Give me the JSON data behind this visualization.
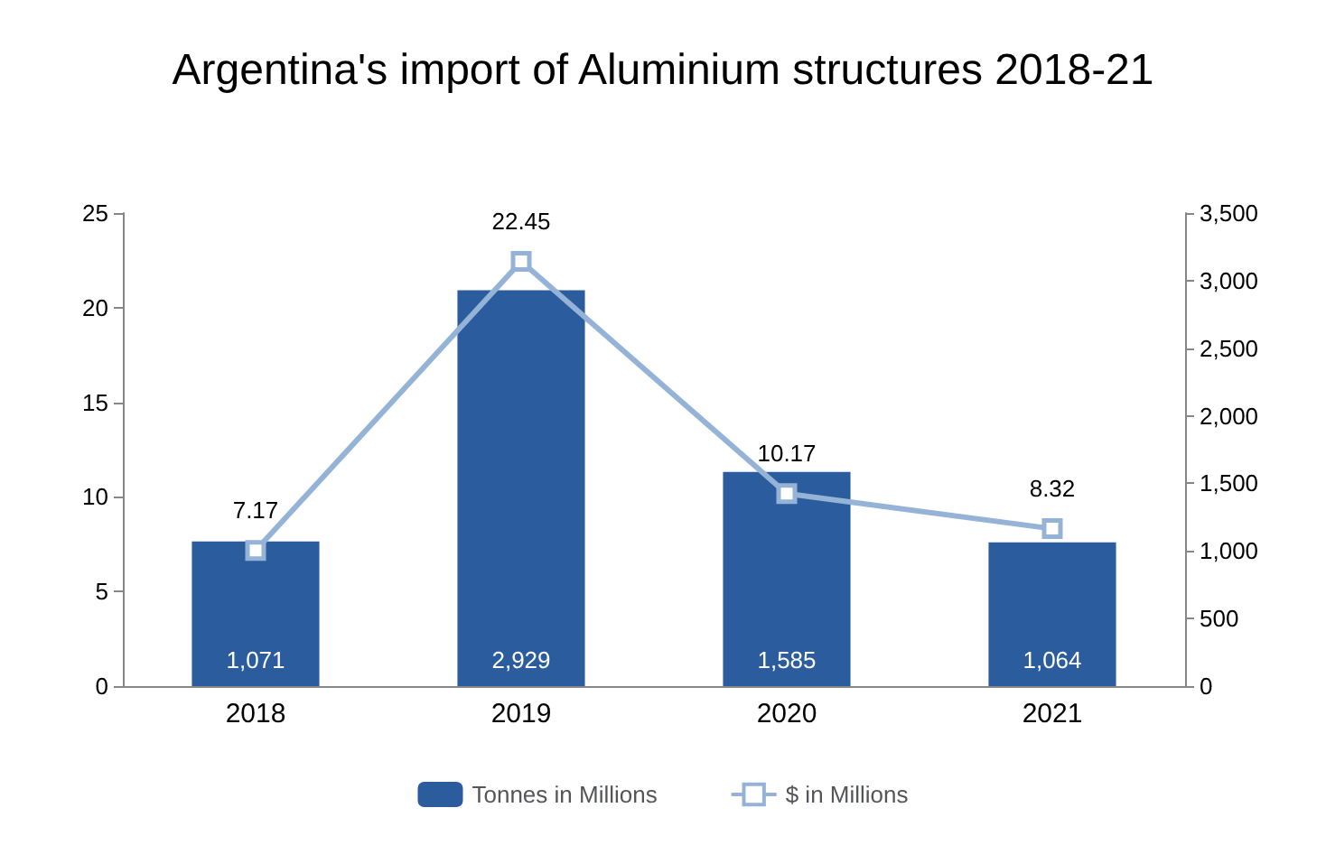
{
  "chart_data": {
    "type": "bar",
    "title": "Argentina's import of Aluminium structures 2018-21",
    "categories": [
      "2018",
      "2019",
      "2020",
      "2021"
    ],
    "series": [
      {
        "name": "Tonnes in Millions",
        "axis": "y2",
        "color": "#2b5c9e",
        "values": [
          1071,
          2929,
          1585,
          1064
        ],
        "value_labels": [
          "1,071",
          "2,929",
          "1,585",
          "1,064"
        ]
      },
      {
        "name": "$ in Millions",
        "type": "line",
        "axis": "y",
        "color": "#95b3d7",
        "marker": "square",
        "values": [
          7.17,
          22.45,
          10.17,
          8.32
        ],
        "value_labels": [
          "7.17",
          "22.45",
          "10.17",
          "8.32"
        ]
      }
    ],
    "ylim": [
      0,
      25
    ],
    "yticks": [
      0,
      5,
      10,
      15,
      20,
      25
    ],
    "y2lim": [
      0,
      3500
    ],
    "y2ticks": [
      0,
      500,
      {
        "value": 1000,
        "label": "1,000"
      },
      {
        "value": 1500,
        "label": "1,500"
      },
      {
        "value": 2000,
        "label": "2,000"
      },
      {
        "value": 2500,
        "label": "2,500"
      },
      {
        "value": 3000,
        "label": "3,000"
      },
      {
        "value": 3500,
        "label": "3,500"
      }
    ],
    "grid": false,
    "legend": "bottom"
  }
}
